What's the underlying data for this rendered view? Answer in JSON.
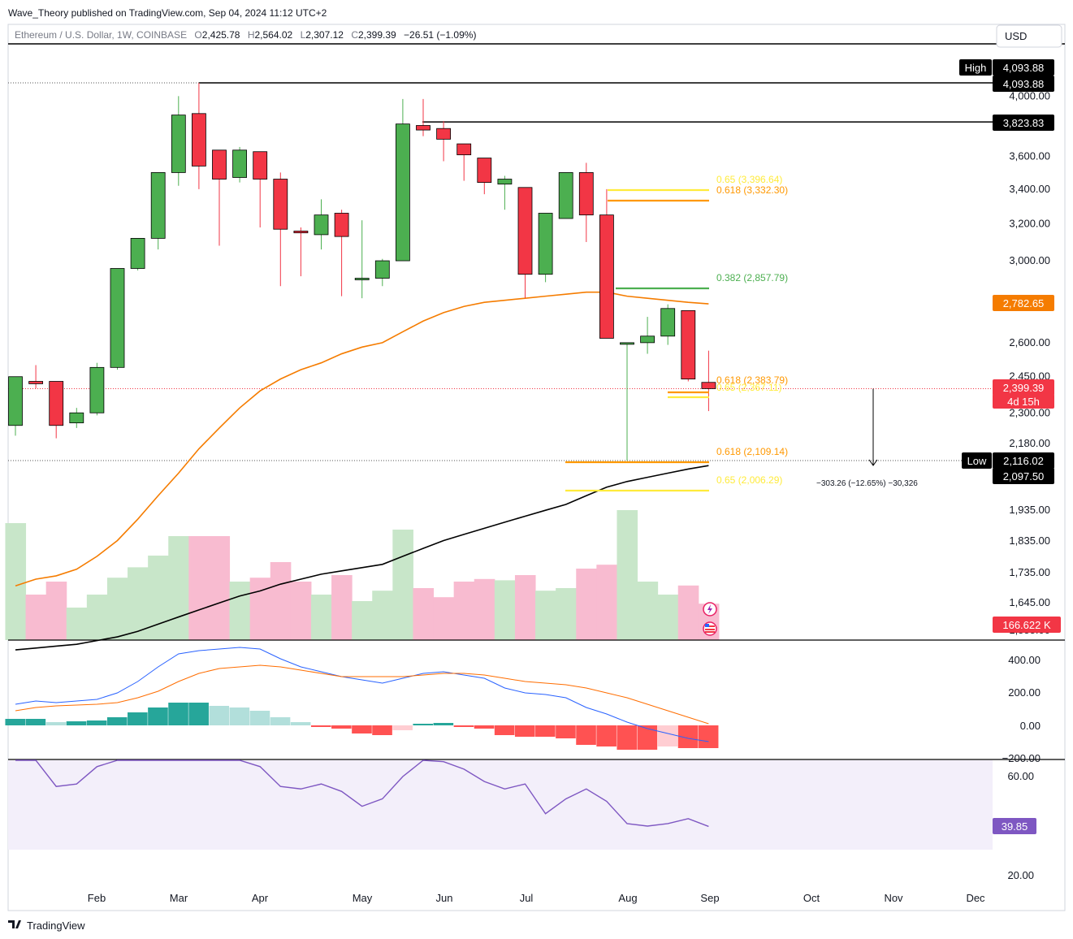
{
  "header": {
    "publisher": "Wave_Theory published on TradingView.com, Sep 04, 2024 11:12 UTC+2",
    "symbol": "Ethereum / U.S. Dollar, 1W, COINBASE",
    "o_label": "O",
    "o_value": "2,425.78",
    "h_label": "H",
    "h_value": "2,564.02",
    "l_label": "L",
    "l_value": "2,307.12",
    "c_label": "C",
    "c_value": "2,399.39",
    "change": "−26.51 (−1.09%)"
  },
  "currency_button": "USD",
  "footer_logo": "TradingView",
  "colors": {
    "up": "#4caf50",
    "down": "#f23645",
    "ema50": "#f57c00",
    "ema200": "#000000",
    "vol_up": "#c8e6c9",
    "vol_down": "#f8bbd0",
    "macd": "#2962ff",
    "signal": "#ff6d00",
    "rsi": "#7e57c2",
    "rsi_bg": "#f3effa",
    "fib_orange": "#ff9800",
    "fib_yellow": "#ffeb3b",
    "fib_green": "#4caf50"
  },
  "badges": {
    "high_label": "High",
    "high_value": "4,093.88",
    "high_value2": "4,093.88",
    "res_value": "3,823.83",
    "ema_value": "2,782.65",
    "price_value": "2,399.39",
    "price_countdown": "4d 15h",
    "low_label": "Low",
    "low_value": "2,116.02",
    "low_value2": "2,097.50",
    "volume_value": "166.622 K",
    "rsi_value": "39.85"
  },
  "measure_text": "−303.26 (−12.65%) −30,326",
  "fib_labels": [
    {
      "text": "0.65 (3,396.64)",
      "color": "#ffeb3b"
    },
    {
      "text": "0.618 (3,332.30)",
      "color": "#ff9800"
    },
    {
      "text": "0.382 (2,857.79)",
      "color": "#4caf50"
    },
    {
      "text": "0.618 (2,383.79)",
      "color": "#ff9800"
    },
    {
      "text": "0.65 (2,367.11)",
      "color": "#ffeb3b"
    },
    {
      "text": "0.618 (2,109.14)",
      "color": "#ff9800"
    },
    {
      "text": "0.65 (2,006.29)",
      "color": "#ffeb3b"
    }
  ],
  "chart_data": {
    "type": "candlestick",
    "timeframe": "1W",
    "x_axis_labels": [
      "Feb",
      "Mar",
      "Apr",
      "May",
      "Jun",
      "Jul",
      "Aug",
      "Sep",
      "Oct",
      "Nov",
      "Dec"
    ],
    "y_axis_labels": [
      "4,000.00",
      "3,600.00",
      "3,400.00",
      "3,200.00",
      "3,000.00",
      "2,600.00",
      "2,450.00",
      "2,300.00",
      "2,180.00",
      "1,935.00",
      "1,835.00",
      "1,735.00",
      "1,645.00",
      "1,555.00"
    ],
    "y_scale": "log",
    "candles": [
      [
        2250,
        2450,
        2210,
        2450
      ],
      [
        2430,
        2500,
        2400,
        2420
      ],
      [
        2430,
        2430,
        2200,
        2250
      ],
      [
        2260,
        2320,
        2240,
        2300
      ],
      [
        2300,
        2510,
        2290,
        2490
      ],
      [
        2490,
        2960,
        2480,
        2960
      ],
      [
        2960,
        3120,
        2950,
        3120
      ],
      [
        3120,
        3500,
        3060,
        3500
      ],
      [
        3500,
        4000,
        3420,
        3870
      ],
      [
        3880,
        4093.88,
        3400,
        3540
      ],
      [
        3640,
        3640,
        3080,
        3460
      ],
      [
        3470,
        3660,
        3440,
        3640
      ],
      [
        3630,
        3630,
        3180,
        3460
      ],
      [
        3460,
        3500,
        2870,
        3170
      ],
      [
        3160,
        3180,
        2920,
        3150
      ],
      [
        3140,
        3340,
        3060,
        3250
      ],
      [
        3260,
        3280,
        2820,
        3130
      ],
      [
        2910,
        3220,
        2810,
        2910
      ],
      [
        2910,
        3010,
        2870,
        3000
      ],
      [
        3000,
        3980,
        3000,
        3810
      ],
      [
        3800,
        3980,
        3730,
        3770
      ],
      [
        3780,
        3830,
        3570,
        3710
      ],
      [
        3680,
        3680,
        3450,
        3610
      ],
      [
        3590,
        3590,
        3370,
        3440
      ],
      [
        3430,
        3480,
        3280,
        3460
      ],
      [
        3410,
        3410,
        2810,
        2930
      ],
      [
        2930,
        3250,
        2890,
        3260
      ],
      [
        3230,
        3500,
        3240,
        3500
      ],
      [
        3500,
        3560,
        3100,
        3250
      ],
      [
        3250,
        3400,
        2620,
        2620
      ],
      [
        2600,
        2600,
        2116.02,
        2600
      ],
      [
        2600,
        2720,
        2550,
        2630
      ],
      [
        2630,
        2780,
        2590,
        2760
      ],
      [
        2750,
        2750,
        2430,
        2440
      ],
      [
        2425.78,
        2564.02,
        2307.12,
        2399.39
      ]
    ],
    "levels": {
      "high": 4093.88,
      "resistance": 3823.83,
      "ema50_last": 2782.65,
      "last": 2399.39,
      "low": 2116.02,
      "ema200_last": 2097.5
    },
    "fib_levels": [
      {
        "ratio": 0.65,
        "price": 3396.64
      },
      {
        "ratio": 0.618,
        "price": 3332.3
      },
      {
        "ratio": 0.382,
        "price": 2857.79
      },
      {
        "ratio": 0.618,
        "price": 2383.79
      },
      {
        "ratio": 0.65,
        "price": 2367.11
      },
      {
        "ratio": 0.618,
        "price": 2109.14
      },
      {
        "ratio": 0.65,
        "price": 2006.29
      }
    ],
    "ema50": [
      1700,
      1720,
      1730,
      1750,
      1790,
      1840,
      1910,
      1990,
      2070,
      2160,
      2240,
      2320,
      2390,
      2440,
      2480,
      2510,
      2550,
      2580,
      2600,
      2650,
      2700,
      2740,
      2770,
      2790,
      2800,
      2810,
      2820,
      2830,
      2840,
      2840,
      2820,
      2810,
      2800,
      2790,
      2782.65
    ],
    "ema200": [
      1520,
      1525,
      1530,
      1535,
      1545,
      1555,
      1570,
      1590,
      1610,
      1630,
      1650,
      1670,
      1685,
      1705,
      1720,
      1735,
      1745,
      1755,
      1765,
      1790,
      1815,
      1840,
      1860,
      1880,
      1900,
      1920,
      1940,
      1960,
      1990,
      2020,
      2040,
      2055,
      2070,
      2085,
      2097.5
    ],
    "volume": [
      0.9,
      0.35,
      0.45,
      0.25,
      0.35,
      0.48,
      0.56,
      0.65,
      0.8,
      0.8,
      0.8,
      0.45,
      0.48,
      0.6,
      0.45,
      0.35,
      0.5,
      0.3,
      0.38,
      0.85,
      0.4,
      0.33,
      0.45,
      0.47,
      0.46,
      0.5,
      0.38,
      0.4,
      0.55,
      0.58,
      1.0,
      0.45,
      0.35,
      0.42,
      0.28
    ],
    "macd_axis_labels": [
      "400.00",
      "200.00",
      "0.00",
      "−200.00"
    ],
    "macd": [
      130,
      150,
      140,
      150,
      160,
      200,
      270,
      360,
      440,
      460,
      470,
      480,
      470,
      410,
      360,
      330,
      300,
      280,
      260,
      290,
      320,
      330,
      310,
      290,
      230,
      200,
      190,
      170,
      110,
      70,
      20,
      -20,
      -50,
      -80,
      -100
    ],
    "signal": [
      90,
      110,
      120,
      125,
      130,
      140,
      170,
      210,
      270,
      320,
      350,
      360,
      370,
      360,
      340,
      320,
      300,
      300,
      300,
      300,
      310,
      320,
      320,
      310,
      290,
      270,
      260,
      250,
      230,
      200,
      170,
      130,
      90,
      50,
      10
    ],
    "histogram": [
      40,
      40,
      20,
      25,
      30,
      50,
      80,
      110,
      140,
      140,
      120,
      110,
      90,
      50,
      20,
      -10,
      -20,
      -50,
      -60,
      -30,
      10,
      15,
      -10,
      -20,
      -60,
      -70,
      -70,
      -80,
      -120,
      -130,
      -150,
      -150,
      -130,
      -140,
      -140
    ],
    "rsi_axis_labels": [
      "60.00",
      "20.00"
    ],
    "rsi": [
      75,
      70,
      56,
      57,
      64,
      78,
      82,
      84,
      86,
      82,
      78,
      72,
      64,
      56,
      55,
      57,
      54,
      48,
      51,
      60,
      68,
      66,
      63,
      58,
      55,
      57,
      45,
      51,
      55,
      50,
      41,
      40,
      41,
      43,
      39.85
    ]
  }
}
